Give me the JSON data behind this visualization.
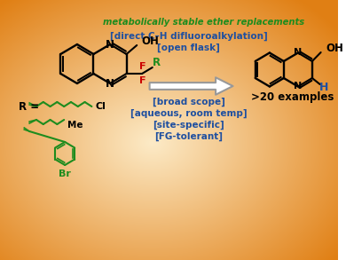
{
  "green_italic_text": "metabolically stable ether replacements",
  "blue_lines_top": [
    "[direct C–H difluoroalkylation]",
    "[open flask]"
  ],
  "blue_lines_bottom": [
    "[broad scope]",
    "[aqueous, room temp]",
    "[site-specific]",
    "[FG-tolerant]"
  ],
  "examples_text": ">20 examples",
  "text_color_blue": "#1E4FA0",
  "text_color_green": "#1E8C1E",
  "text_color_black": "#000000",
  "text_color_red": "#CC0000"
}
